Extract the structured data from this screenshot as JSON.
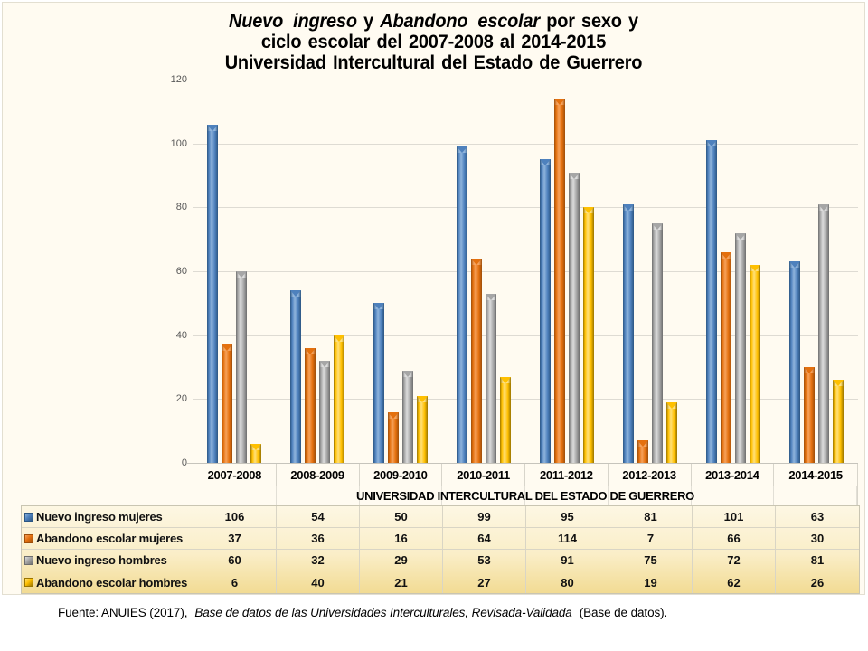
{
  "title": {
    "line1_parts": [
      {
        "text": "Nuevo ingreso",
        "italic": true
      },
      {
        "text": " y ",
        "italic": false
      },
      {
        "text": "Abandono escolar",
        "italic": true
      },
      {
        "text": " por sexo y",
        "italic": false
      }
    ],
    "line2": "ciclo escolar del 2007-2008 al 2014-2015",
    "line3": "Universidad Intercultural del Estado de Guerrero"
  },
  "chart_data": {
    "type": "bar",
    "title": "Nuevo ingreso y Abandono escolar por sexo y ciclo escolar del 2007-2008 al 2014-2015 Universidad Intercultural del Estado de Guerrero",
    "categories": [
      "2007-2008",
      "2008-2009",
      "2009-2010",
      "2010-2011",
      "2011-2012",
      "2012-2013",
      "2013-2014",
      "2014-2015"
    ],
    "series": [
      {
        "name": "Nuevo ingreso mujeres",
        "values": [
          106,
          54,
          50,
          99,
          95,
          81,
          101,
          63
        ],
        "color": "#4E81BD",
        "color_light": "#8FB4DC",
        "color_dark": "#2C5682"
      },
      {
        "name": "Abandono escolar mujeres",
        "values": [
          37,
          36,
          16,
          64,
          114,
          7,
          66,
          30
        ],
        "color": "#E4700E",
        "color_light": "#F6A25B",
        "color_dark": "#9E4E09"
      },
      {
        "name": "Nuevo ingreso hombres",
        "values": [
          60,
          32,
          29,
          53,
          91,
          75,
          72,
          81
        ],
        "color": "#A6A6A6",
        "color_light": "#DCDCDC",
        "color_dark": "#6E6E6E"
      },
      {
        "name": "Abandono escolar hombres",
        "values": [
          6,
          40,
          21,
          27,
          80,
          19,
          62,
          26
        ],
        "color": "#FFC000",
        "color_light": "#FFE07A",
        "color_dark": "#9A7500"
      }
    ],
    "xlabel": "UNIVERSIDAD INTERCULTURAL DEL ESTADO DE GUERRERO",
    "ylabel": "",
    "ylim": [
      0,
      120
    ],
    "ytick_step": 20,
    "yticks": [
      0,
      20,
      40,
      60,
      80,
      100,
      120
    ],
    "grid": true,
    "legend_position": "table-rows-left",
    "table_is_legend": true
  },
  "footer": {
    "normal1": "Fuente: ANUIES (2017),",
    "italic": "Base de datos de las Universidades  Interculturales, Revisada-Validada",
    "normal2": "(Base de datos)."
  },
  "colors": {
    "chart_background": "#FFFBF1",
    "gridline": "#DEDBD3",
    "axis_text": "#595959",
    "table_border": "#C9C5B2",
    "table_gradient_top": "#FDF7E3",
    "table_gradient_bottom": "#F2DB93"
  }
}
